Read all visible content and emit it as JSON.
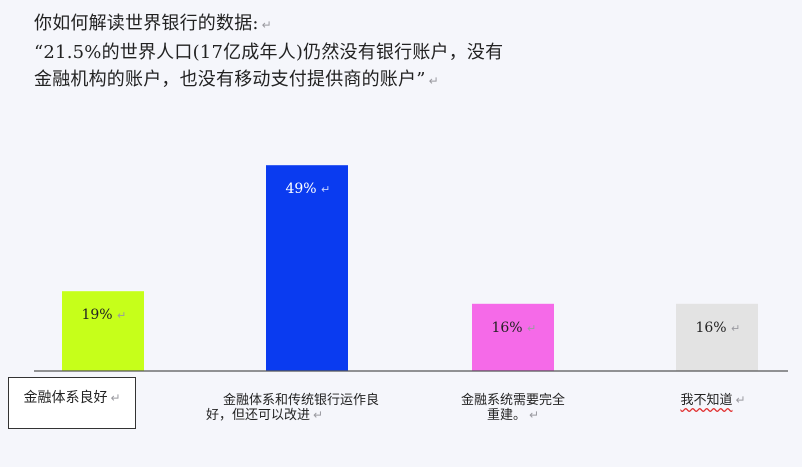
{
  "header": {
    "lines": [
      "你如何解读世界银行的数据:",
      "“21.5%的世界人口(17亿成年人)仍然没有银行账户，没有",
      "金融机构的账户，也没有移动支付提供商的账户”"
    ],
    "return_mark": "↵"
  },
  "chart_data": {
    "type": "bar",
    "title": "",
    "xlabel": "",
    "ylabel": "",
    "ylim": [
      0,
      55
    ],
    "categories": [
      "金融体系良好",
      "金融体系和传统银行运作良好，但还可以改进",
      "金融系统需要完全重建。",
      "我不知道"
    ],
    "values": [
      19,
      49,
      16,
      16
    ],
    "value_labels": [
      "19%",
      "49%",
      "16%",
      "16%"
    ],
    "colors": [
      "#c6ff1a",
      "#0a3bf0",
      "#f56ae8",
      "#e3e3e3"
    ],
    "label_colors": [
      "#222222",
      "#ffffff",
      "#222222",
      "#222222"
    ],
    "grid": false
  },
  "categories_display": {
    "c1": "金融体系良好",
    "c2_line1": "金融体系和传统银行运作良",
    "c2_line2": "好，但还可以改进",
    "c3_line1": "金融系统需要完全",
    "c3_line2": "重建。",
    "c4": "我不知道"
  }
}
